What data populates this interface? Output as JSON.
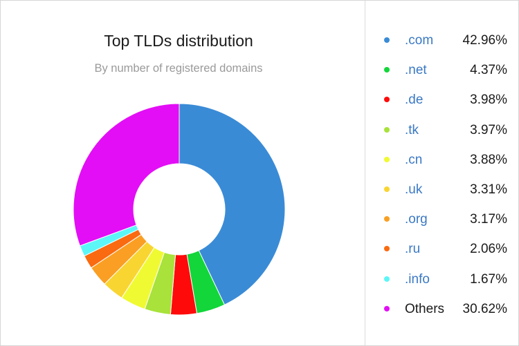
{
  "chart_data": {
    "type": "pie",
    "variant": "donut",
    "title": "Top TLDs distribution",
    "subtitle": "By number of registered domains",
    "legend_placement": "right",
    "slices": [
      {
        "label": ".com",
        "value_text": "42.96%",
        "value": 42.96,
        "color": "#3a8bd6"
      },
      {
        "label": ".net",
        "value_text": "4.37%",
        "value": 4.37,
        "color": "#12d63a"
      },
      {
        "label": ".de",
        "value_text": "3.98%",
        "value": 3.98,
        "color": "#ff0a0a"
      },
      {
        "label": ".tk",
        "value_text": "3.97%",
        "value": 3.97,
        "color": "#a8e23a"
      },
      {
        "label": ".cn",
        "value_text": "3.88%",
        "value": 3.88,
        "color": "#f0fa32"
      },
      {
        "label": ".uk",
        "value_text": "3.31%",
        "value": 3.31,
        "color": "#f9d531"
      },
      {
        "label": ".org",
        "value_text": "3.17%",
        "value": 3.17,
        "color": "#fa9f23"
      },
      {
        "label": ".ru",
        "value_text": "2.06%",
        "value": 2.06,
        "color": "#fa6a10"
      },
      {
        "label": ".info",
        "value_text": "1.67%",
        "value": 1.67,
        "color": "#5cf6f7"
      },
      {
        "label": "Others",
        "value_text": "30.62%",
        "value": 30.62,
        "color": "#e30ef5"
      }
    ]
  }
}
